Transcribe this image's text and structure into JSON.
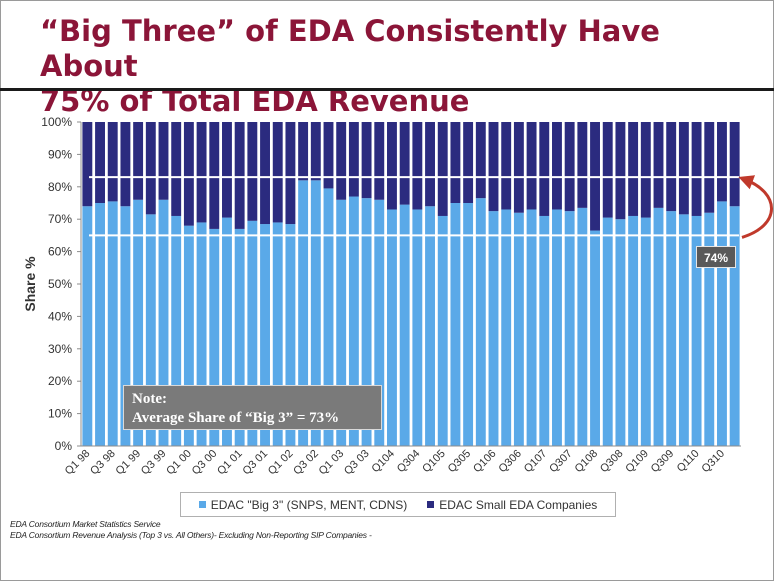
{
  "title": {
    "line1": "“Big Three” of EDA Consistently Have About",
    "line2": "75% of Total EDA Revenue"
  },
  "note": {
    "line1": "Note:",
    "line2": "Average Share of “Big 3” = 73%"
  },
  "callout": "74%",
  "sources": [
    "EDA Consortium Market Statistics Service",
    "EDA Consortium Revenue Analysis (Top 3 vs. All Others)- Excluding Non-Reporting SIP Companies -"
  ],
  "colors": {
    "title": "#8b1538",
    "big3": "#5aa9e8",
    "small": "#2b2b7f",
    "arrow": "#c0392b",
    "note_box": "#7a7a7a"
  },
  "chart_data": {
    "type": "bar",
    "stacked": true,
    "ylabel": "Share %",
    "xlabel": "",
    "ylim": [
      0,
      100
    ],
    "y_ticks": [
      "0%",
      "10%",
      "20%",
      "30%",
      "40%",
      "50%",
      "60%",
      "70%",
      "80%",
      "90%",
      "100%"
    ],
    "x_tick_labels": [
      "Q1 98",
      "Q3 98",
      "Q1 99",
      "Q3 99",
      "Q1 00",
      "Q3 00",
      "Q1 01",
      "Q3 01",
      "Q1 02",
      "Q3 02",
      "Q1 03",
      "Q3 03",
      "Q104",
      "Q304",
      "Q105",
      "Q305",
      "Q106",
      "Q306",
      "Q107",
      "Q307",
      "Q108",
      "Q308",
      "Q109",
      "Q309",
      "Q110",
      "Q310"
    ],
    "categories": [
      "Q1 98",
      "Q2 98",
      "Q3 98",
      "Q4 98",
      "Q1 99",
      "Q2 99",
      "Q3 99",
      "Q4 99",
      "Q1 00",
      "Q2 00",
      "Q3 00",
      "Q4 00",
      "Q1 01",
      "Q2 01",
      "Q3 01",
      "Q4 01",
      "Q1 02",
      "Q2 02",
      "Q3 02",
      "Q4 02",
      "Q1 03",
      "Q2 03",
      "Q3 03",
      "Q4 03",
      "Q104",
      "Q204",
      "Q304",
      "Q404",
      "Q105",
      "Q205",
      "Q305",
      "Q405",
      "Q106",
      "Q206",
      "Q306",
      "Q406",
      "Q107",
      "Q207",
      "Q307",
      "Q407",
      "Q108",
      "Q208",
      "Q308",
      "Q408",
      "Q109",
      "Q209",
      "Q309",
      "Q409",
      "Q110",
      "Q210",
      "Q310",
      "Q410"
    ],
    "series": [
      {
        "name": "EDAC \"Big 3\" (SNPS, MENT, CDNS)",
        "values": [
          74,
          75,
          75.5,
          74,
          76,
          71.5,
          76,
          71,
          68,
          69,
          67,
          70.5,
          67,
          69.5,
          68.5,
          69,
          68.5,
          82,
          82,
          79.5,
          76,
          77,
          76.5,
          76,
          73,
          74.5,
          73,
          74,
          71,
          75,
          75,
          76.5,
          72.5,
          73,
          72,
          73,
          71,
          73,
          72.5,
          73.5,
          66.5,
          70.5,
          70,
          71,
          70.5,
          73.5,
          72.5,
          71.5,
          71,
          72,
          75.5,
          74
        ]
      },
      {
        "name": "EDAC Small EDA Companies",
        "values": [
          26,
          25,
          24.5,
          26,
          24,
          28.5,
          24,
          29,
          32,
          31,
          33,
          29.5,
          33,
          30.5,
          31.5,
          31,
          31.5,
          18,
          18,
          20.5,
          24,
          23,
          23.5,
          24,
          27,
          25.5,
          27,
          26,
          29,
          25,
          25,
          23.5,
          27.5,
          27,
          28,
          27,
          29,
          27,
          27.5,
          26.5,
          33.5,
          29.5,
          30,
          29,
          29.5,
          26.5,
          27.5,
          28.5,
          29,
          28,
          24.5,
          26
        ]
      }
    ],
    "reference_lines": [
      83,
      65
    ],
    "legend": "bottom",
    "grid": false
  }
}
